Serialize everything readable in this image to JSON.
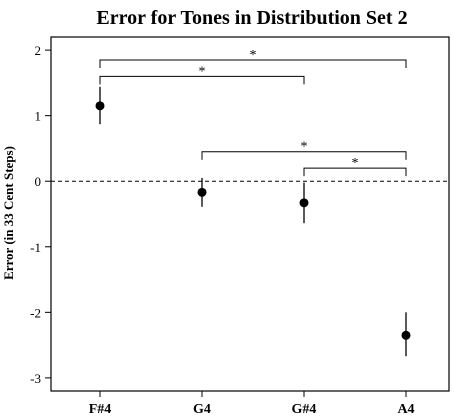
{
  "chart_data": {
    "type": "scatter",
    "title": "Error for Tones in Distribution Set 2",
    "xlabel": "",
    "ylabel": "Error (in 33 Cent Steps)",
    "categories": [
      "F#4",
      "G4",
      "G#4",
      "A4"
    ],
    "ylim": [
      -3.2,
      2.2
    ],
    "yticks": [
      -3,
      -2,
      -1,
      0,
      1,
      2
    ],
    "points": [
      {
        "category": "F#4",
        "value": 1.15,
        "low": 0.87,
        "high": 1.44
      },
      {
        "category": "G4",
        "value": -0.17,
        "low": -0.39,
        "high": 0.05
      },
      {
        "category": "G#4",
        "value": -0.33,
        "low": -0.64,
        "high": -0.02
      },
      {
        "category": "A4",
        "value": -2.35,
        "low": -2.67,
        "high": -2.0
      }
    ],
    "reference_line": {
      "value": 0,
      "style": "dashed"
    },
    "significance_brackets": [
      {
        "from": "F#4",
        "to": "A4",
        "level": 1.85,
        "label": "*"
      },
      {
        "from": "F#4",
        "to": "G#4",
        "level": 1.6,
        "label": "*"
      },
      {
        "from": "G4",
        "to": "A4",
        "level": 0.45,
        "label": "*"
      },
      {
        "from": "G#4",
        "to": "A4",
        "level": 0.2,
        "label": "*"
      }
    ],
    "grid": false,
    "legend": "none"
  }
}
